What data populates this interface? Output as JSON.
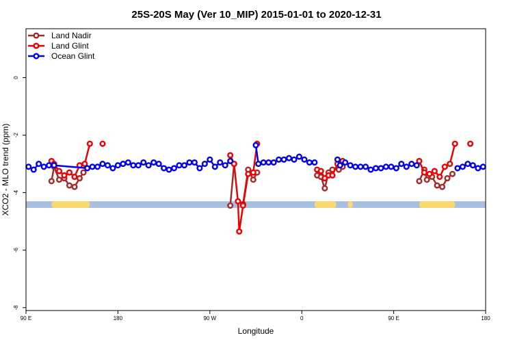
{
  "chart_data": {
    "type": "line",
    "title": "25S-20S May (Ver 10_MIP)   2015-01-01 to 2020-12-31",
    "xlabel": "Longitude",
    "ylabel": "XCO2 - MLO trend (ppm)",
    "xlim": [
      0,
      360
    ],
    "ylim": [
      -8.1,
      1.7
    ],
    "x_ticks": [
      {
        "value": 0,
        "label": "90 E"
      },
      {
        "value": 72,
        "label": "180"
      },
      {
        "value": 144,
        "label": "90 W"
      },
      {
        "value": 216,
        "label": "0"
      },
      {
        "value": 288,
        "label": "90 E"
      },
      {
        "value": 360,
        "label": "180"
      }
    ],
    "y_ticks": [
      0,
      -2,
      -4,
      -6,
      -8
    ],
    "grid": false,
    "legend_position": "top-left",
    "series": [
      {
        "name": "Land Nadir",
        "color": "#a52a2a",
        "segments": [
          [
            [
              20,
              -3.6
            ],
            [
              22,
              -3.1
            ],
            [
              26,
              -3.55
            ],
            [
              30,
              -3.5
            ],
            [
              34,
              -3.75
            ],
            [
              38,
              -3.8
            ],
            [
              42,
              -3.5
            ],
            [
              45,
              -3.3
            ]
          ],
          [
            [
              160,
              -4.45
            ],
            [
              163,
              -3.0
            ]
          ],
          [
            [
              170,
              -4.4
            ],
            [
              174,
              -3.2
            ],
            [
              178,
              -3.55
            ],
            [
              181,
              -3.3
            ]
          ],
          [
            [
              228,
              -3.4
            ],
            [
              231,
              -3.45
            ],
            [
              234,
              -3.85
            ],
            [
              237,
              -3.3
            ],
            [
              240,
              -3.2
            ]
          ],
          [
            [
              245,
              -3.2
            ],
            [
              248,
              -3.1
            ]
          ],
          [
            [
              308,
              -3.6
            ],
            [
              312,
              -3.2
            ],
            [
              314,
              -3.55
            ],
            [
              318,
              -3.45
            ],
            [
              322,
              -3.75
            ],
            [
              326,
              -3.8
            ],
            [
              330,
              -3.5
            ],
            [
              334,
              -3.35
            ]
          ]
        ]
      },
      {
        "name": "Land Glint",
        "color": "#ee0000",
        "segments": [
          [
            [
              20,
              -2.9
            ],
            [
              22,
              -3.0
            ],
            [
              26,
              -3.25
            ],
            [
              30,
              -3.4
            ],
            [
              34,
              -3.3
            ],
            [
              38,
              -3.45
            ],
            [
              42,
              -3.05
            ],
            [
              46,
              -3.0
            ],
            [
              50,
              -2.3
            ]
          ],
          [
            [
              60,
              -2.3
            ]
          ],
          [
            [
              160,
              -2.7
            ],
            [
              163,
              -3.0
            ],
            [
              166,
              -4.3
            ],
            [
              167,
              -5.35
            ],
            [
              170,
              -4.45
            ],
            [
              174,
              -3.35
            ],
            [
              178,
              -3.3
            ],
            [
              181,
              -2.3
            ]
          ],
          [
            [
              228,
              -3.2
            ],
            [
              231,
              -3.25
            ],
            [
              234,
              -3.5
            ],
            [
              237,
              -3.4
            ],
            [
              240,
              -3.4
            ],
            [
              244,
              -3.0
            ],
            [
              248,
              -2.9
            ]
          ],
          [
            [
              308,
              -2.9
            ],
            [
              312,
              -3.3
            ],
            [
              316,
              -3.35
            ],
            [
              320,
              -3.25
            ],
            [
              324,
              -3.45
            ],
            [
              328,
              -3.1
            ],
            [
              332,
              -3.0
            ],
            [
              336,
              -2.3
            ]
          ],
          [
            [
              348,
              -2.3
            ]
          ]
        ]
      },
      {
        "name": "Ocean Glint",
        "color": "#0000ee",
        "segments": [
          [
            [
              2,
              -3.1
            ],
            [
              6,
              -3.2
            ],
            [
              10,
              -3.0
            ],
            [
              14,
              -3.1
            ],
            [
              18,
              -3.05
            ],
            [
              22,
              -3.05
            ],
            [
              48,
              -3.15
            ],
            [
              52,
              -3.1
            ],
            [
              56,
              -3.1
            ],
            [
              60,
              -3.0
            ],
            [
              64,
              -3.05
            ],
            [
              68,
              -3.15
            ],
            [
              72,
              -3.05
            ],
            [
              76,
              -3.0
            ],
            [
              80,
              -2.95
            ],
            [
              84,
              -3.05
            ],
            [
              88,
              -3.05
            ],
            [
              92,
              -2.95
            ],
            [
              96,
              -3.05
            ],
            [
              100,
              -2.95
            ],
            [
              104,
              -3.0
            ],
            [
              108,
              -3.15
            ],
            [
              112,
              -3.2
            ],
            [
              116,
              -3.15
            ],
            [
              120,
              -3.05
            ],
            [
              124,
              -3.05
            ],
            [
              128,
              -2.95
            ],
            [
              132,
              -2.95
            ],
            [
              136,
              -3.15
            ],
            [
              140,
              -3.0
            ],
            [
              144,
              -2.85
            ],
            [
              148,
              -3.1
            ],
            [
              152,
              -2.95
            ],
            [
              156,
              -3.05
            ],
            [
              160,
              -2.9
            ]
          ],
          [
            [
              180,
              -2.35
            ],
            [
              182,
              -3.0
            ],
            [
              186,
              -2.95
            ],
            [
              190,
              -2.95
            ],
            [
              194,
              -2.95
            ],
            [
              198,
              -2.85
            ],
            [
              202,
              -2.85
            ],
            [
              206,
              -2.8
            ],
            [
              210,
              -2.85
            ],
            [
              214,
              -2.75
            ],
            [
              218,
              -2.85
            ],
            [
              222,
              -2.95
            ],
            [
              226,
              -2.95
            ]
          ],
          [
            [
              244,
              -2.85
            ],
            [
              246,
              -3.05
            ],
            [
              250,
              -2.95
            ],
            [
              254,
              -3.05
            ],
            [
              258,
              -3.1
            ],
            [
              262,
              -3.1
            ],
            [
              266,
              -3.1
            ],
            [
              270,
              -3.2
            ],
            [
              274,
              -3.15
            ],
            [
              278,
              -3.15
            ],
            [
              282,
              -3.1
            ],
            [
              286,
              -3.1
            ],
            [
              290,
              -3.15
            ],
            [
              294,
              -3.0
            ],
            [
              298,
              -3.1
            ],
            [
              302,
              -3.0
            ],
            [
              306,
              -3.05
            ]
          ],
          [
            [
              338,
              -3.15
            ],
            [
              342,
              -3.1
            ],
            [
              346,
              -3.0
            ],
            [
              350,
              -3.05
            ],
            [
              354,
              -3.15
            ],
            [
              358,
              -3.1
            ]
          ]
        ]
      }
    ]
  },
  "surface_band": {
    "y_range": [
      -4.3,
      -4.53
    ],
    "ocean_color": "#a8bfe0",
    "land_color": "#fcd96e",
    "land_spans": [
      [
        20,
        50
      ],
      [
        226,
        243
      ],
      [
        252,
        256
      ],
      [
        308,
        336
      ]
    ]
  }
}
